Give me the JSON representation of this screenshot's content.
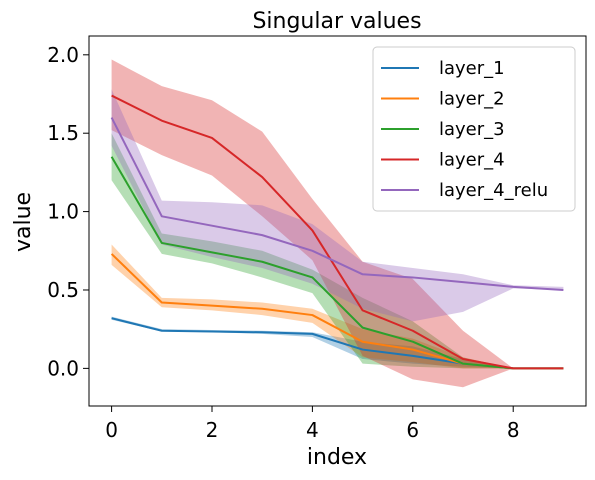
{
  "chart_data": {
    "type": "line",
    "title": "Singular values",
    "xlabel": "index",
    "ylabel": "value",
    "xlim": [
      -0.45,
      9.45
    ],
    "ylim": [
      -0.24,
      2.12
    ],
    "xticks": [
      0,
      2,
      4,
      6,
      8
    ],
    "yticks": [
      0.0,
      0.5,
      1.0,
      1.5,
      2.0
    ],
    "xtick_labels": [
      "0",
      "2",
      "4",
      "6",
      "8"
    ],
    "ytick_labels": [
      "0.0",
      "0.5",
      "1.0",
      "1.5",
      "2.0"
    ],
    "grid": false,
    "legend_position": "upper right",
    "x": [
      0,
      1,
      2,
      3,
      4,
      5,
      6,
      7,
      8,
      9
    ],
    "series": [
      {
        "name": "layer_1",
        "color": "#1f77b4",
        "values": [
          0.32,
          0.24,
          0.235,
          0.23,
          0.22,
          0.12,
          0.08,
          0.03,
          0.0,
          0.0
        ],
        "lower": [
          0.31,
          0.235,
          0.23,
          0.22,
          0.2,
          0.06,
          0.03,
          0.01,
          0.0,
          0.0
        ],
        "upper": [
          0.33,
          0.25,
          0.245,
          0.24,
          0.23,
          0.17,
          0.14,
          0.06,
          0.0,
          0.0
        ]
      },
      {
        "name": "layer_2",
        "color": "#ff7f0e",
        "values": [
          0.73,
          0.42,
          0.4,
          0.38,
          0.34,
          0.17,
          0.12,
          0.03,
          0.0,
          0.0
        ],
        "lower": [
          0.66,
          0.39,
          0.37,
          0.34,
          0.29,
          0.07,
          0.04,
          0.0,
          0.0,
          0.0
        ],
        "upper": [
          0.79,
          0.45,
          0.44,
          0.42,
          0.38,
          0.25,
          0.19,
          0.07,
          0.0,
          0.0
        ]
      },
      {
        "name": "layer_3",
        "color": "#2ca02c",
        "values": [
          1.35,
          0.8,
          0.74,
          0.68,
          0.58,
          0.26,
          0.17,
          0.03,
          0.0,
          0.0
        ],
        "lower": [
          1.2,
          0.73,
          0.67,
          0.58,
          0.48,
          0.03,
          0.01,
          0.0,
          0.0,
          0.0
        ],
        "upper": [
          1.5,
          0.86,
          0.81,
          0.75,
          0.63,
          0.45,
          0.3,
          0.07,
          0.0,
          0.0
        ]
      },
      {
        "name": "layer_4",
        "color": "#d62728",
        "values": [
          1.74,
          1.58,
          1.47,
          1.22,
          0.88,
          0.37,
          0.24,
          0.06,
          0.0,
          0.0
        ],
        "lower": [
          1.52,
          1.36,
          1.23,
          0.97,
          0.69,
          0.08,
          -0.07,
          -0.12,
          0.0,
          0.0
        ],
        "upper": [
          1.97,
          1.8,
          1.71,
          1.51,
          1.08,
          0.68,
          0.57,
          0.24,
          0.0,
          0.0
        ]
      },
      {
        "name": "layer_4_relu",
        "color": "#9467bd",
        "values": [
          1.6,
          0.97,
          0.91,
          0.85,
          0.75,
          0.6,
          0.58,
          0.55,
          0.52,
          0.5
        ],
        "lower": [
          1.42,
          0.79,
          0.71,
          0.64,
          0.54,
          0.38,
          0.3,
          0.36,
          0.51,
          0.5
        ],
        "upper": [
          1.78,
          1.07,
          1.06,
          1.04,
          0.92,
          0.68,
          0.64,
          0.6,
          0.53,
          0.52
        ]
      }
    ]
  }
}
